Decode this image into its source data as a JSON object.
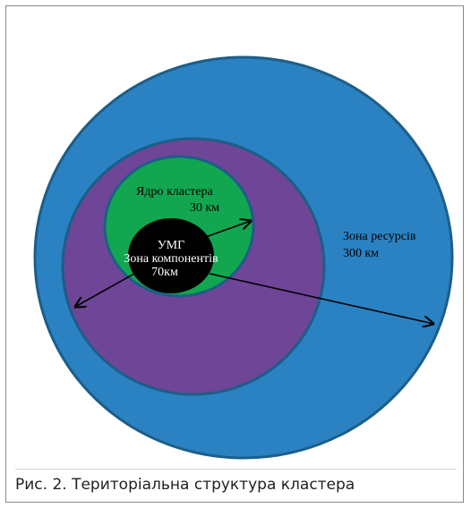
{
  "figure": {
    "zones": {
      "resources": {
        "line1": "Зона ресурсів",
        "line2": "300 км",
        "color": "#2a82c2"
      },
      "components": {
        "line1": "Зона компонентів",
        "line2": "70км",
        "color": "#6f4598"
      },
      "core": {
        "line1": "Ядро кластера",
        "line2": "30 км",
        "color": "#12a650"
      },
      "center": {
        "label": "УМГ",
        "color": "#000000"
      }
    },
    "outline_color": "#1c5e88",
    "arrow_color": "#000000"
  },
  "caption": "Рис. 2. Територіальна структура кластера"
}
